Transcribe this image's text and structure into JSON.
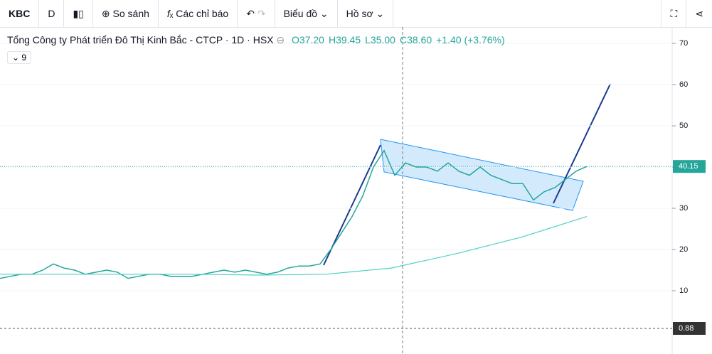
{
  "toolbar": {
    "symbol": "KBC",
    "interval": "D",
    "compare": "So sánh",
    "indicators": "Các chỉ báo",
    "chart_menu": "Biểu đồ",
    "profile_menu": "Hồ sơ"
  },
  "legend": {
    "title": "Tổng Công ty Phát triển Đô Thị Kinh Bắc - CTCP · 1D · HSX",
    "open": "O37.20",
    "high": "H39.45",
    "low": "L35.00",
    "close": "C38.60",
    "change": "+1.40 (+3.76%)",
    "indicator": "9"
  },
  "chart_data": {
    "type": "line",
    "series": [
      {
        "color": "#26a69a",
        "values": [
          13,
          13.5,
          14,
          14,
          15,
          16.5,
          15.5,
          15,
          14,
          14.5,
          15,
          14.5,
          13,
          13.5,
          14,
          14,
          13.5,
          13.5,
          13.5,
          14,
          14.5,
          15,
          14.5,
          15,
          14.5,
          14,
          14.5,
          15.5,
          16,
          16,
          16.5,
          20,
          24,
          28,
          33,
          40,
          44,
          38,
          41,
          40,
          40,
          39,
          41,
          39,
          38,
          40,
          38,
          37,
          36,
          36,
          32,
          34,
          35,
          37,
          39,
          40.15
        ]
      },
      {
        "color": "#4dd0c4",
        "values": [
          14,
          14,
          14,
          14,
          13.8,
          14,
          15.5,
          19,
          23,
          28
        ]
      }
    ],
    "ylim": [
      -5.34,
      73.97
    ],
    "yticks": [
      10,
      20,
      30,
      40,
      50,
      60,
      70
    ],
    "grid": true,
    "volume_label": 0.88
  }
}
